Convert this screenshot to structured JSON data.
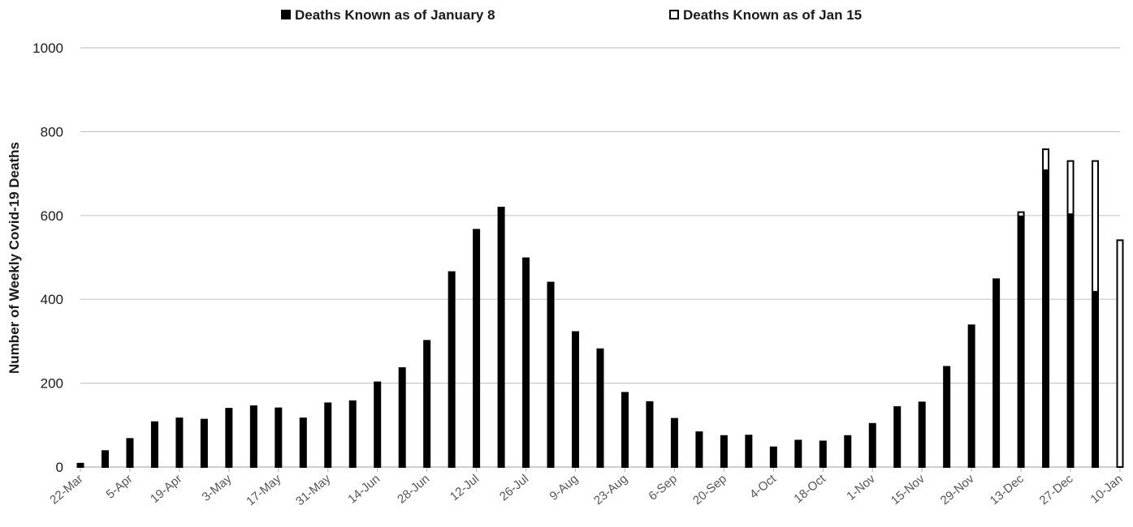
{
  "chart_data": {
    "type": "bar",
    "title": "",
    "xlabel": "",
    "ylabel": "Number of Weekly Covid-19 Deaths",
    "ylim": [
      0,
      1000
    ],
    "yticks": [
      0,
      200,
      400,
      600,
      800,
      1000
    ],
    "grid": true,
    "legend_position": "top",
    "categories": [
      "22-Mar",
      "29-Mar",
      "5-Apr",
      "12-Apr",
      "19-Apr",
      "26-Apr",
      "3-May",
      "10-May",
      "17-May",
      "24-May",
      "31-May",
      "7-Jun",
      "14-Jun",
      "21-Jun",
      "28-Jun",
      "5-Jul",
      "12-Jul",
      "19-Jul",
      "26-Jul",
      "2-Aug",
      "9-Aug",
      "16-Aug",
      "23-Aug",
      "30-Aug",
      "6-Sep",
      "13-Sep",
      "20-Sep",
      "27-Sep",
      "4-Oct",
      "11-Oct",
      "18-Oct",
      "25-Oct",
      "1-Nov",
      "8-Nov",
      "15-Nov",
      "22-Nov",
      "29-Nov",
      "6-Dec",
      "13-Dec",
      "20-Dec",
      "27-Dec",
      "3-Jan",
      "10-Jan"
    ],
    "tick_labels": [
      "22-Mar",
      "5-Apr",
      "19-Apr",
      "3-May",
      "17-May",
      "31-May",
      "14-Jun",
      "28-Jun",
      "12-Jul",
      "26-Jul",
      "9-Aug",
      "23-Aug",
      "6-Sep",
      "20-Sep",
      "4-Oct",
      "18-Oct",
      "1-Nov",
      "15-Nov",
      "29-Nov",
      "13-Dec",
      "27-Dec",
      "10-Jan"
    ],
    "series": [
      {
        "name": "Deaths Known as of January 8",
        "color": "#000000",
        "style": "filled",
        "values": [
          8,
          38,
          67,
          107,
          116,
          113,
          139,
          145,
          140,
          116,
          152,
          157,
          202,
          236,
          301,
          465,
          566,
          619,
          498,
          440,
          322,
          281,
          177,
          155,
          115,
          83,
          74,
          75,
          47,
          63,
          61,
          74,
          103,
          143,
          154,
          239,
          338,
          448,
          600,
          710,
          605,
          420,
          0
        ]
      },
      {
        "name": "Deaths Known as of Jan 15",
        "color": "#000000",
        "style": "outline",
        "values": [
          8,
          38,
          67,
          107,
          116,
          113,
          139,
          145,
          140,
          116,
          152,
          157,
          202,
          236,
          301,
          465,
          566,
          619,
          498,
          440,
          322,
          281,
          177,
          155,
          115,
          83,
          74,
          75,
          47,
          63,
          61,
          74,
          103,
          143,
          154,
          239,
          338,
          448,
          608,
          758,
          730,
          730,
          541
        ]
      }
    ]
  }
}
